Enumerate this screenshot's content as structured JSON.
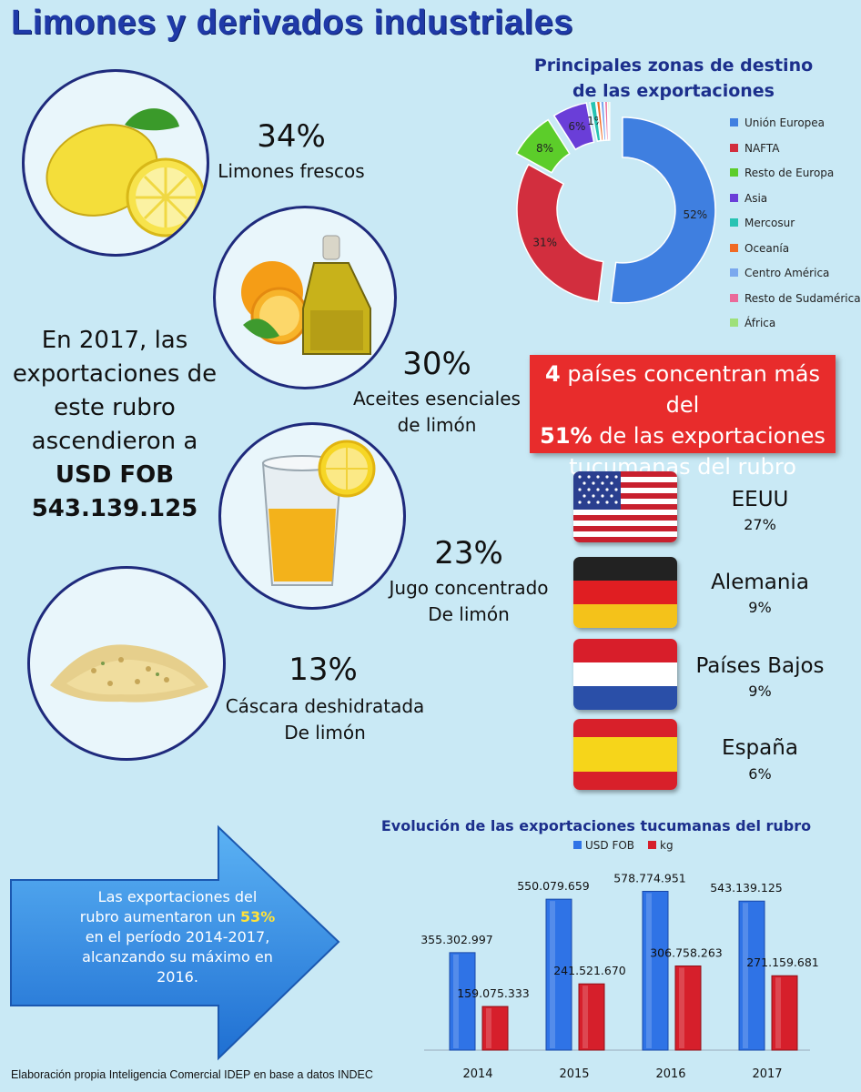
{
  "title": "Limones y derivados industriales",
  "products": [
    {
      "pct": "34%",
      "label_line1": "Limones frescos",
      "label_line2": "",
      "image": "lemon-icon"
    },
    {
      "pct": "30%",
      "label_line1": "Aceites esenciales",
      "label_line2": "de limón",
      "image": "oil-bottle-icon"
    },
    {
      "pct": "23%",
      "label_line1": "Jugo concentrado",
      "label_line2": "De limón",
      "image": "juice-glass-icon"
    },
    {
      "pct": "13%",
      "label_line1": "Cáscara deshidratada",
      "label_line2": "De limón",
      "image": "peel-powder-icon"
    }
  ],
  "intro": {
    "line1": "En 2017, las",
    "line2": "exportaciones de",
    "line3": "este rubro",
    "line4": "ascendieron a",
    "line5": "USD FOB",
    "line6": "543.139.125"
  },
  "highlight": {
    "count": "4",
    "text1": " países concentran más del",
    "bold2": "51%",
    "text2": " de las exportaciones",
    "line3": "tucumanas del rubro"
  },
  "countries": [
    {
      "name": "EEUU",
      "pct": "27%",
      "flag": "usa-flag-icon"
    },
    {
      "name": "Alemania",
      "pct": "9%",
      "flag": "germany-flag-icon"
    },
    {
      "name": "Países Bajos",
      "pct": "9%",
      "flag": "netherlands-flag-icon"
    },
    {
      "name": "España",
      "pct": "6%",
      "flag": "spain-flag-icon"
    }
  ],
  "arrow_text": {
    "line1": "Las exportaciones del",
    "line2a": "rubro aumentaron un ",
    "line2b": "53%",
    "line3": "en el período 2014-2017,",
    "line4": "alcanzando su máximo en",
    "line5": "2016."
  },
  "footer": "Elaboración propia Inteligencia Comercial IDEP en base a datos INDEC",
  "chart_data": [
    {
      "type": "pie",
      "title_line1": "Principales zonas de destino",
      "title_line2": "de las exportaciones",
      "legend_position": "right",
      "slices": [
        {
          "name": "Unión Europea",
          "value": 52,
          "label": "52%",
          "color": "#3f7fe0"
        },
        {
          "name": "NAFTA",
          "value": 31,
          "label": "31%",
          "color": "#d22e3e"
        },
        {
          "name": "Resto de Europa",
          "value": 8,
          "label": "8%",
          "color": "#5ccd2a"
        },
        {
          "name": "Asia",
          "value": 6,
          "label": "6%",
          "color": "#6a3ed8"
        },
        {
          "name": "Mercosur",
          "value": 1,
          "label": "1%",
          "color": "#27c3b3"
        },
        {
          "name": "Oceanía",
          "value": 0.6,
          "label": "",
          "color": "#f06a24"
        },
        {
          "name": "Centro América",
          "value": 0.6,
          "label": "",
          "color": "#7aa8ee"
        },
        {
          "name": "Resto de Sudamérica",
          "value": 0.5,
          "label": "",
          "color": "#ea6a9a"
        },
        {
          "name": "África",
          "value": 0.3,
          "label": "",
          "color": "#9ee07a"
        }
      ]
    },
    {
      "type": "bar",
      "title": "Evolución de las exportaciones tucumanas del rubro",
      "categories": [
        "2014",
        "2015",
        "2016",
        "2017"
      ],
      "series": [
        {
          "name": "USD FOB",
          "values": [
            355302997,
            550079659,
            578774951,
            543139125
          ],
          "labels": [
            "355.302.997",
            "550.079.659",
            "578.774.951",
            "543.139.125"
          ],
          "color": "#2f73e6"
        },
        {
          "name": "kg",
          "values": [
            159075333,
            241521670,
            306758263,
            271159681
          ],
          "labels": [
            "159.075.333",
            "241.521.670",
            "306.758.263",
            "271.159.681"
          ],
          "color": "#d61f2b"
        }
      ],
      "legend_position": "top",
      "grid": false,
      "ylim": [
        0,
        650000000
      ]
    }
  ]
}
